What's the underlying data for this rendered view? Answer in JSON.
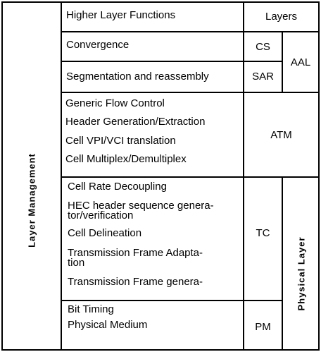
{
  "side": {
    "layer_management": "Layer Management",
    "physical_layer": "Physical Layer"
  },
  "rows": {
    "higher": "Higher Layer Functions",
    "layers": "Layers",
    "convergence": "Convergence",
    "cs": "CS",
    "aal": "AAL",
    "sar_label": "Segmentation and reassembly",
    "sar": "SAR",
    "atm_functions": [
      "Generic Flow Control",
      "Header Generation/Extraction",
      "Cell VPI/VCI translation",
      "Cell Multiplex/Demultiplex"
    ],
    "atm": "ATM",
    "tc_functions": [
      "Cell Rate Decoupling",
      "HEC header sequence genera-",
      "tor/verification",
      "Cell Delineation",
      "Transmission  Frame  Adapta-",
      "tion",
      "Transmission  Frame  genera-"
    ],
    "tc": "TC",
    "pm_functions": [
      "Bit Timing",
      "Physical Medium"
    ],
    "pm": "PM"
  }
}
